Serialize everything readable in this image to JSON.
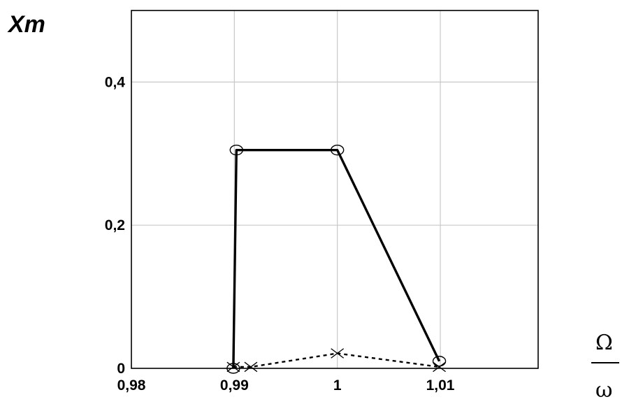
{
  "chart_data": {
    "type": "line",
    "ylabel": "Xm",
    "xlabel_numerator": "Ω",
    "xlabel_denominator": "ω",
    "xlim": [
      0.98,
      1.0195
    ],
    "ylim": [
      0,
      0.5
    ],
    "grid": true,
    "x_ticks": [
      0.98,
      0.99,
      1.0,
      1.01
    ],
    "x_tick_labels": [
      "0,98",
      "0,99",
      "1",
      "1,01"
    ],
    "y_ticks": [
      0,
      0.2,
      0.4
    ],
    "y_tick_labels": [
      "0",
      "0,2",
      "0,4"
    ],
    "series": [
      {
        "style": "solid",
        "marker": "circle",
        "x": [
          0.9899,
          0.9902,
          1.0,
          1.0099
        ],
        "y": [
          0.0,
          0.305,
          0.305,
          0.01
        ]
      },
      {
        "style": "dotted",
        "marker": "cross",
        "x": [
          0.9899,
          0.9916,
          1.0,
          1.0099
        ],
        "y": [
          0.002,
          0.002,
          0.021,
          0.002
        ]
      }
    ]
  }
}
